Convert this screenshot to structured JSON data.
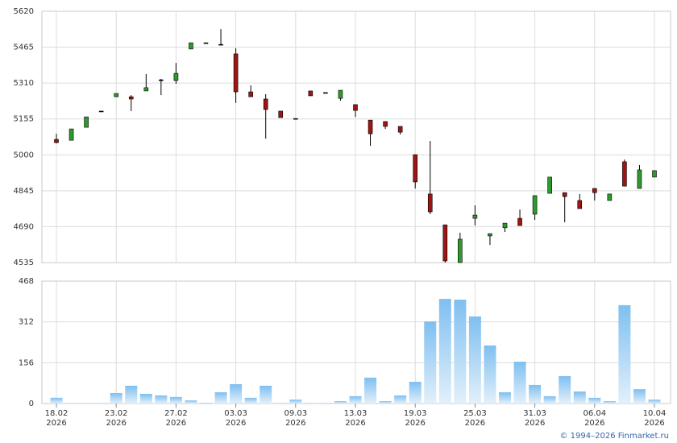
{
  "chart_data": [
    {
      "type": "candlestick",
      "colors": {
        "up": "#2e9a2e",
        "down": "#a01414",
        "wick": "#000000"
      },
      "open": [
        5067,
        5063,
        5119,
        5189,
        5251,
        5251,
        5276,
        5324,
        5321,
        5457,
        5484,
        5477,
        5436,
        5272,
        5241,
        5189,
        5157,
        5276,
        5269,
        5244,
        5217,
        5150,
        5144,
        5123,
        5001,
        4831,
        4698,
        4535,
        4726,
        4650,
        4685,
        4726,
        4744,
        4834,
        4837,
        4803,
        4855,
        4803,
        4970,
        4855,
        4904
      ],
      "high": [
        5091,
        5112,
        5164,
        5189,
        5265,
        5258,
        5349,
        5328,
        5397,
        5484,
        5484,
        5543,
        5460,
        5300,
        5262,
        5189,
        5157,
        5276,
        5269,
        5279,
        5217,
        5150,
        5144,
        5123,
        5001,
        5060,
        4698,
        4664,
        4782,
        4660,
        4705,
        4764,
        4824,
        4904,
        4837,
        4831,
        4855,
        4831,
        4980,
        4956,
        4932
      ],
      "low": [
        5050,
        5063,
        5119,
        5189,
        5251,
        5189,
        5276,
        5258,
        5307,
        5457,
        5484,
        5477,
        5224,
        5251,
        5070,
        5161,
        5157,
        5255,
        5269,
        5234,
        5164,
        5039,
        5112,
        5088,
        4855,
        4744,
        4535,
        4535,
        4695,
        4611,
        4667,
        4695,
        4719,
        4834,
        4709,
        4768,
        4803,
        4803,
        4865,
        4855,
        4904
      ],
      "close": [
        5053,
        5112,
        5164,
        5189,
        5265,
        5241,
        5290,
        5324,
        5352,
        5484,
        5484,
        5477,
        5272,
        5251,
        5196,
        5161,
        5157,
        5255,
        5269,
        5279,
        5192,
        5091,
        5123,
        5098,
        4883,
        4754,
        4542,
        4636,
        4740,
        4660,
        4705,
        4695,
        4824,
        4904,
        4820,
        4768,
        4837,
        4831,
        4865,
        4935,
        4932
      ],
      "ylim": [
        4535,
        5620
      ],
      "yticks": [
        4535,
        4690,
        4845,
        5000,
        5155,
        5310,
        5465,
        5620
      ],
      "grid": true
    },
    {
      "type": "bar",
      "color": "#7fbff0",
      "categories": [
        "18.02\n2026",
        null,
        null,
        null,
        "23.02\n2026",
        null,
        null,
        null,
        "27.02\n2026",
        null,
        null,
        null,
        "03.03\n2026",
        null,
        null,
        null,
        "09.03\n2026",
        null,
        null,
        null,
        "13.03\n2026",
        null,
        null,
        null,
        "19.03\n2026",
        null,
        null,
        null,
        "25.03\n2026",
        null,
        null,
        null,
        "31.03\n2026",
        null,
        null,
        null,
        "06.04\n2026",
        null,
        null,
        null,
        "10.04\n2026"
      ],
      "values": [
        22,
        1,
        1,
        1,
        40,
        68,
        37,
        31,
        25,
        12,
        3,
        43,
        74,
        22,
        68,
        2,
        15,
        2,
        2,
        9,
        28,
        99,
        9,
        31,
        83,
        314,
        400,
        397,
        333,
        222,
        43,
        160,
        71,
        28,
        105,
        46,
        22,
        9,
        376,
        55,
        15
      ],
      "ylim": [
        0,
        468
      ],
      "yticks": [
        0,
        156,
        312,
        468
      ],
      "grid": true
    }
  ],
  "footer": "© 1994–2026 Finmarket.ru"
}
